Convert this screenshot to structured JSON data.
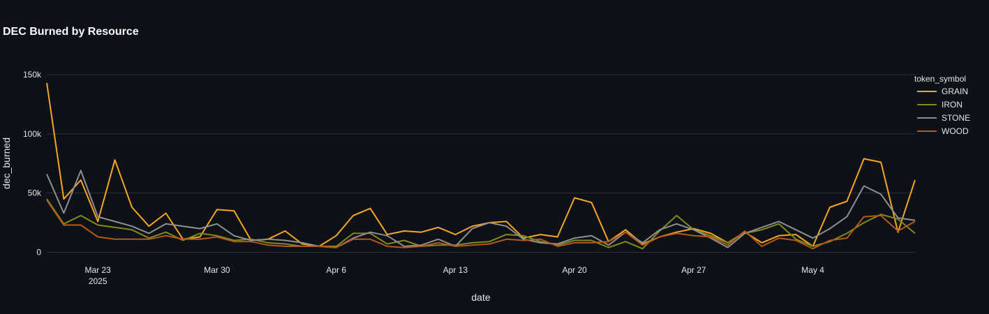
{
  "chart_data": {
    "type": "line",
    "title": "DEC Burned by Resource",
    "xlabel": "date",
    "ylabel": "dec_burned",
    "legend_title": "token_symbol",
    "legend_position": "right",
    "grid": true,
    "ylim": [
      -5000,
      160000
    ],
    "y_ticks": [
      {
        "value": 0,
        "label": "0"
      },
      {
        "value": 50000,
        "label": "50k"
      },
      {
        "value": 100000,
        "label": "100k"
      },
      {
        "value": 150000,
        "label": "150k"
      }
    ],
    "x_start": "2025-03-20",
    "x_ticks": [
      {
        "date": "2025-03-23",
        "label": "Mar 23",
        "sublabel": "2025"
      },
      {
        "date": "2025-03-30",
        "label": "Mar 30",
        "sublabel": ""
      },
      {
        "date": "2025-04-06",
        "label": "Apr 6",
        "sublabel": ""
      },
      {
        "date": "2025-04-13",
        "label": "Apr 13",
        "sublabel": ""
      },
      {
        "date": "2025-04-20",
        "label": "Apr 20",
        "sublabel": ""
      },
      {
        "date": "2025-04-27",
        "label": "Apr 27",
        "sublabel": ""
      },
      {
        "date": "2025-05-04",
        "label": "May 4",
        "sublabel": ""
      }
    ],
    "series": [
      {
        "name": "GRAIN",
        "color": "#f5a623",
        "values": [
          143000,
          45000,
          61000,
          26000,
          78000,
          38000,
          22000,
          33000,
          11000,
          13000,
          36000,
          35000,
          10000,
          11000,
          18000,
          7000,
          5000,
          14000,
          31000,
          37000,
          15000,
          18000,
          17000,
          21000,
          15000,
          22000,
          25000,
          26000,
          12000,
          15000,
          13000,
          46000,
          42000,
          9000,
          19000,
          7000,
          13000,
          17000,
          20000,
          16000,
          8000,
          17000,
          8000,
          14000,
          15000,
          5000,
          38000,
          43000,
          79000,
          76000,
          17000,
          61000
        ]
      },
      {
        "name": "IRON",
        "color": "#7f8c1c",
        "values": [
          45000,
          24000,
          31000,
          23000,
          21000,
          19000,
          12000,
          17000,
          10000,
          16000,
          14000,
          10000,
          11000,
          8000,
          7000,
          5000,
          5000,
          5000,
          16000,
          16000,
          7000,
          10000,
          5000,
          6000,
          6000,
          8000,
          9000,
          15000,
          14000,
          9000,
          6000,
          10000,
          10000,
          4000,
          9000,
          3000,
          18000,
          31000,
          19000,
          14000,
          8000,
          16000,
          19000,
          24000,
          11000,
          5000,
          9000,
          16000,
          25000,
          32000,
          28000,
          16000
        ]
      },
      {
        "name": "STONE",
        "color": "#8f8f8f",
        "values": [
          66000,
          33000,
          69000,
          30000,
          26000,
          22000,
          16000,
          24000,
          22000,
          20000,
          24000,
          14000,
          10000,
          11000,
          10000,
          8000,
          5000,
          4000,
          12000,
          17000,
          14000,
          5000,
          6000,
          11000,
          5000,
          20000,
          25000,
          22000,
          11000,
          8000,
          7000,
          12000,
          14000,
          6000,
          17000,
          8000,
          19000,
          24000,
          19000,
          12000,
          4000,
          16000,
          21000,
          26000,
          19000,
          12000,
          20000,
          30000,
          56000,
          49000,
          29000,
          27000
        ]
      },
      {
        "name": "WOOD",
        "color": "#b5581a",
        "values": [
          44000,
          23000,
          23000,
          13000,
          11000,
          11000,
          11000,
          14000,
          11000,
          11000,
          13000,
          9000,
          9000,
          6000,
          5000,
          5000,
          5000,
          4000,
          11000,
          11000,
          5000,
          4000,
          5000,
          8000,
          5000,
          6000,
          7000,
          11000,
          10000,
          11000,
          5000,
          8000,
          8000,
          9000,
          17000,
          6000,
          13000,
          16000,
          14000,
          13000,
          6000,
          18000,
          5000,
          12000,
          10000,
          3000,
          10000,
          12000,
          30000,
          31000,
          18000,
          26000
        ]
      }
    ]
  }
}
